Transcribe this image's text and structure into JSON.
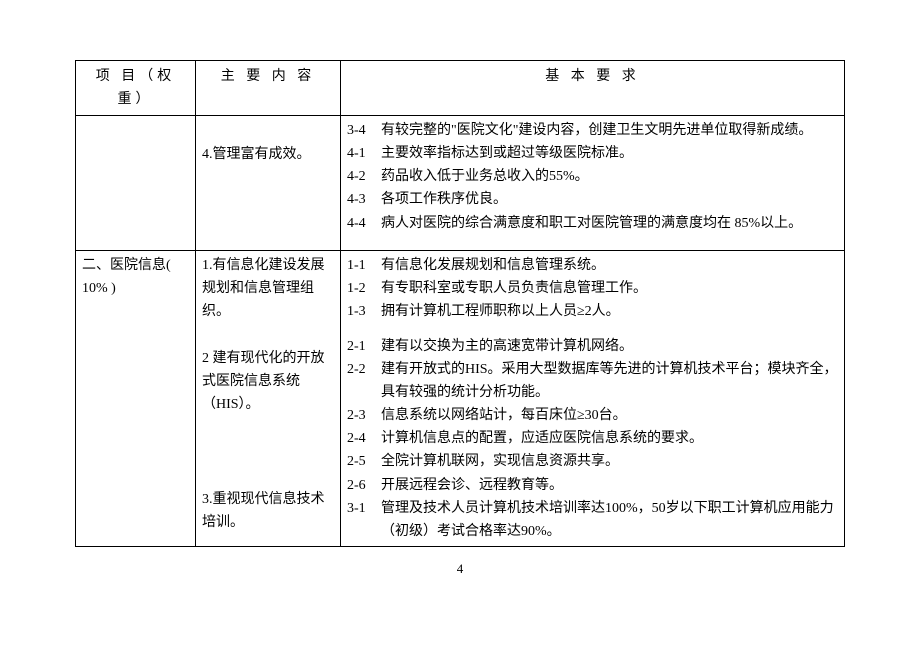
{
  "headers": {
    "col1": "项 目（权重）",
    "col2": "主 要 内 容",
    "col3": "基 本 要 求"
  },
  "row1": {
    "project": "",
    "content": "4.管理富有成效。",
    "reqs": [
      {
        "n": "3-4",
        "t": "有较完整的\"医院文化\"建设内容，创建卫生文明先进单位取得新成绩。"
      },
      {
        "n": "4-1",
        "t": "主要效率指标达到或超过等级医院标准。"
      },
      {
        "n": "4-2",
        "t": "药品收入低于业务总收入的55%。"
      },
      {
        "n": "4-3",
        "t": "各项工作秩序优良。"
      },
      {
        "n": "4-4",
        "t": "病人对医院的综合满意度和职工对医院管理的满意度均在 85%以上。"
      }
    ]
  },
  "row2": {
    "project": "二、医院信息( 10% )",
    "content1": "1.有信息化建设发展规划和信息管理组织。",
    "content2": "2 建有现代化的开放式医院信息系统（HIS）。",
    "content3": "3.重视现代信息技术培训。",
    "reqs1": [
      {
        "n": "1-1",
        "t": "有信息化发展规划和信息管理系统。"
      },
      {
        "n": "1-2",
        "t": "有专职科室或专职人员负责信息管理工作。"
      },
      {
        "n": "1-3",
        "t": "拥有计算机工程师职称以上人员≥2人。"
      }
    ],
    "reqs2": [
      {
        "n": "2-1",
        "t": "建有以交换为主的高速宽带计算机网络。"
      },
      {
        "n": "2-2",
        "t": "建有开放式的HIS。采用大型数据库等先进的计算机技术平台；模块齐全，具有较强的统计分析功能。"
      },
      {
        "n": "2-3",
        "t": "信息系统以网络站计，每百床位≥30台。"
      },
      {
        "n": "2-4",
        "t": "计算机信息点的配置，应适应医院信息系统的要求。"
      },
      {
        "n": "2-5",
        "t": "全院计算机联网，实现信息资源共享。"
      },
      {
        "n": "2-6",
        "t": "开展远程会诊、远程教育等。"
      }
    ],
    "reqs3": [
      {
        "n": "3-1",
        "t": "管理及技术人员计算机技术培训率达100%，50岁以下职工计算机应用能力（初级）考试合格率达90%。"
      }
    ]
  },
  "pageNumber": "4"
}
